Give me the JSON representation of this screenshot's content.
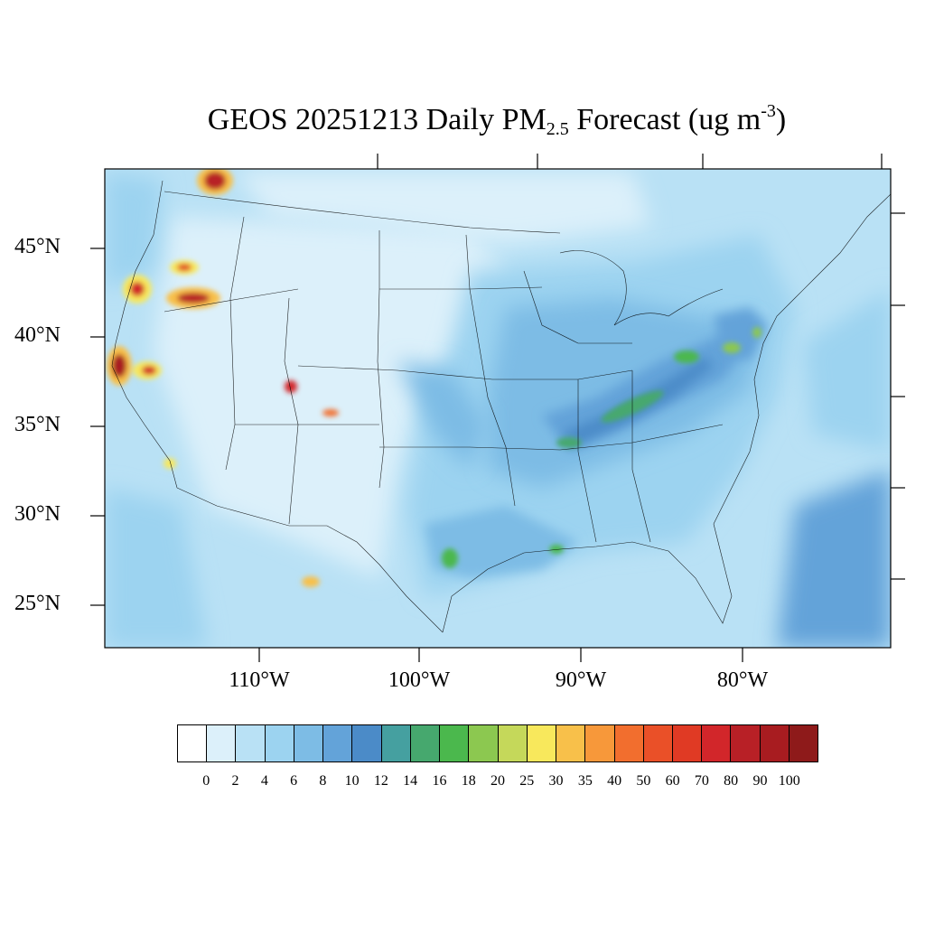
{
  "title": {
    "prefix": "GEOS 20251213 Daily PM",
    "sub": "2.5",
    "mid": " Forecast (ug m",
    "sup": "-3",
    "suffix": ")"
  },
  "map": {
    "projection": "Lambert conic",
    "region": "Contiguous United States",
    "lat_labels": [
      "45°N",
      "40°N",
      "35°N",
      "30°N",
      "25°N"
    ],
    "lon_labels": [
      "110°W",
      "100°W",
      "90°W",
      "80°W"
    ],
    "background_field": "PM2.5 concentration",
    "hotspots": [
      {
        "region": "Northern Idaho / Montana border",
        "level": "70-100"
      },
      {
        "region": "Southern Oregon / Northern California coast",
        "level": "60-100"
      },
      {
        "region": "Southeast Oregon / Idaho border",
        "level": "50-100"
      },
      {
        "region": "Northern California Sacramento Valley",
        "level": "70-100"
      },
      {
        "region": "Nevada-California border",
        "level": "50-90"
      },
      {
        "region": "Southwest Colorado",
        "level": "40-90"
      },
      {
        "region": "Northern New Mexico",
        "level": "30-60"
      },
      {
        "region": "Northern Mexico",
        "level": "25-50"
      },
      {
        "region": "Ohio River Valley",
        "level": "14-25"
      },
      {
        "region": "South Texas",
        "level": "14-20"
      }
    ]
  },
  "colorbar": {
    "colors": [
      "#ffffff",
      "#dcf0fa",
      "#b9e1f5",
      "#9cd3f0",
      "#7dbce5",
      "#63a3d9",
      "#4b8bc8",
      "#45a0a0",
      "#46a86e",
      "#4bb84d",
      "#8cc850",
      "#c5d85a",
      "#f8e85c",
      "#f8c04a",
      "#f7983a",
      "#f26e2e",
      "#ea5028",
      "#e03a24",
      "#d2262a",
      "#b82026",
      "#a81c20",
      "#8e1a1a"
    ],
    "ticks": [
      "0",
      "2",
      "4",
      "6",
      "8",
      "10",
      "12",
      "14",
      "16",
      "18",
      "20",
      "25",
      "30",
      "35",
      "40",
      "50",
      "60",
      "70",
      "80",
      "90",
      "100"
    ]
  }
}
